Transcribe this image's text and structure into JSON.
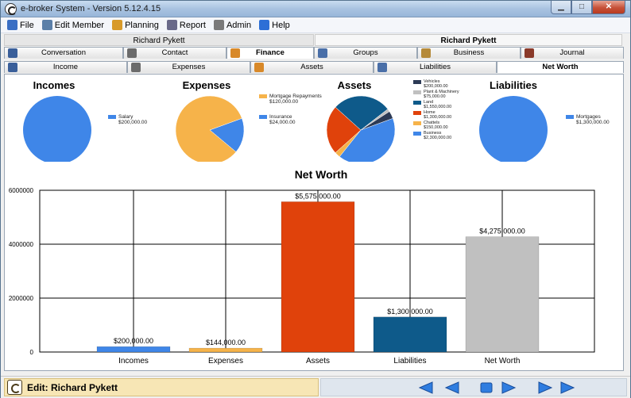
{
  "window": {
    "title": "e-broker System - Version 5.12.4.15"
  },
  "menu": [
    {
      "label": "File",
      "icon": "file-icon",
      "color": "#3a6fc4"
    },
    {
      "label": "Edit Member",
      "icon": "edit-member-icon",
      "color": "#5b7fa8"
    },
    {
      "label": "Planning",
      "icon": "planning-icon",
      "color": "#d89a2a"
    },
    {
      "label": "Report",
      "icon": "report-icon",
      "color": "#6a6a8a"
    },
    {
      "label": "Admin",
      "icon": "admin-icon",
      "color": "#7a7a7a"
    },
    {
      "label": "Help",
      "icon": "help-icon",
      "color": "#2d6fd6"
    }
  ],
  "member": {
    "left_name": "Richard Pykett",
    "right_name": "Richard Pykett"
  },
  "tabs_row1": [
    {
      "label": "Conversation",
      "icon": "conversation-icon"
    },
    {
      "label": "Contact",
      "icon": "contact-icon"
    },
    {
      "label": "Finance",
      "icon": "finance-icon",
      "active": true
    },
    {
      "label": "Groups",
      "icon": "groups-icon"
    },
    {
      "label": "Business",
      "icon": "business-icon"
    },
    {
      "label": "Journal",
      "icon": "journal-icon"
    }
  ],
  "tabs_row2": [
    {
      "label": "Income",
      "icon": "income-icon"
    },
    {
      "label": "Expenses",
      "icon": "expenses-icon"
    },
    {
      "label": "Assets",
      "icon": "assets-icon"
    },
    {
      "label": "Liabilities",
      "icon": "liabilities-icon"
    },
    {
      "label": "Net Worth",
      "active": true
    }
  ],
  "chart_data": [
    {
      "type": "pie",
      "title": "Incomes",
      "slices": [
        {
          "label": "Salary",
          "value_label": "$200,000.00",
          "value": 200000,
          "color": "#3f86e8"
        }
      ]
    },
    {
      "type": "pie",
      "title": "Expenses",
      "slices": [
        {
          "label": "Mortgage Repayments",
          "value_label": "$120,000.00",
          "value": 120000,
          "color": "#f6b34a"
        },
        {
          "label": "Insurance",
          "value_label": "$24,000.00",
          "value": 24000,
          "color": "#3f86e8"
        }
      ]
    },
    {
      "type": "pie",
      "title": "Assets",
      "slices": [
        {
          "label": "Vehicles",
          "value_label": "$200,000.00",
          "value": 200000,
          "color": "#2c3a55"
        },
        {
          "label": "Plant & Machinery",
          "value_label": "$75,000.00",
          "value": 75000,
          "color": "#c0c0c0"
        },
        {
          "label": "Land",
          "value_label": "$1,550,000.00",
          "value": 1550000,
          "color": "#0e5a8a"
        },
        {
          "label": "Home",
          "value_label": "$1,300,000.00",
          "value": 1300000,
          "color": "#e0420b"
        },
        {
          "label": "Chattels",
          "value_label": "$150,000.00",
          "value": 150000,
          "color": "#f6b34a"
        },
        {
          "label": "Business",
          "value_label": "$2,300,000.00",
          "value": 2300000,
          "color": "#3f86e8"
        }
      ]
    },
    {
      "type": "pie",
      "title": "Liabilities",
      "slices": [
        {
          "label": "Mortgages",
          "value_label": "$1,300,000.00",
          "value": 1300000,
          "color": "#3f86e8"
        }
      ]
    },
    {
      "type": "bar",
      "title": "Net Worth",
      "categories": [
        "Incomes",
        "Expenses",
        "Assets",
        "Liabilities",
        "Net Worth"
      ],
      "values": [
        200000,
        144000,
        5575000,
        1300000,
        4275000
      ],
      "value_labels": [
        "$200,000.00",
        "$144,000.00",
        "$5,575,000.00",
        "$1,300,000.00",
        "$4,275,000.00"
      ],
      "colors": [
        "#3f86e8",
        "#f6b34a",
        "#e0420b",
        "#0e5a8a",
        "#c0c0c0"
      ],
      "ylim": [
        0,
        6000000
      ],
      "yticks": [
        0,
        2000000,
        4000000,
        6000000
      ],
      "ytick_labels": [
        "0",
        "2000000",
        "4000000",
        "6000000"
      ],
      "grid": true
    }
  ],
  "status": {
    "text": "Edit: Richard Pykett"
  },
  "nav": [
    "first",
    "prev",
    "save",
    "next",
    "last",
    "more"
  ]
}
